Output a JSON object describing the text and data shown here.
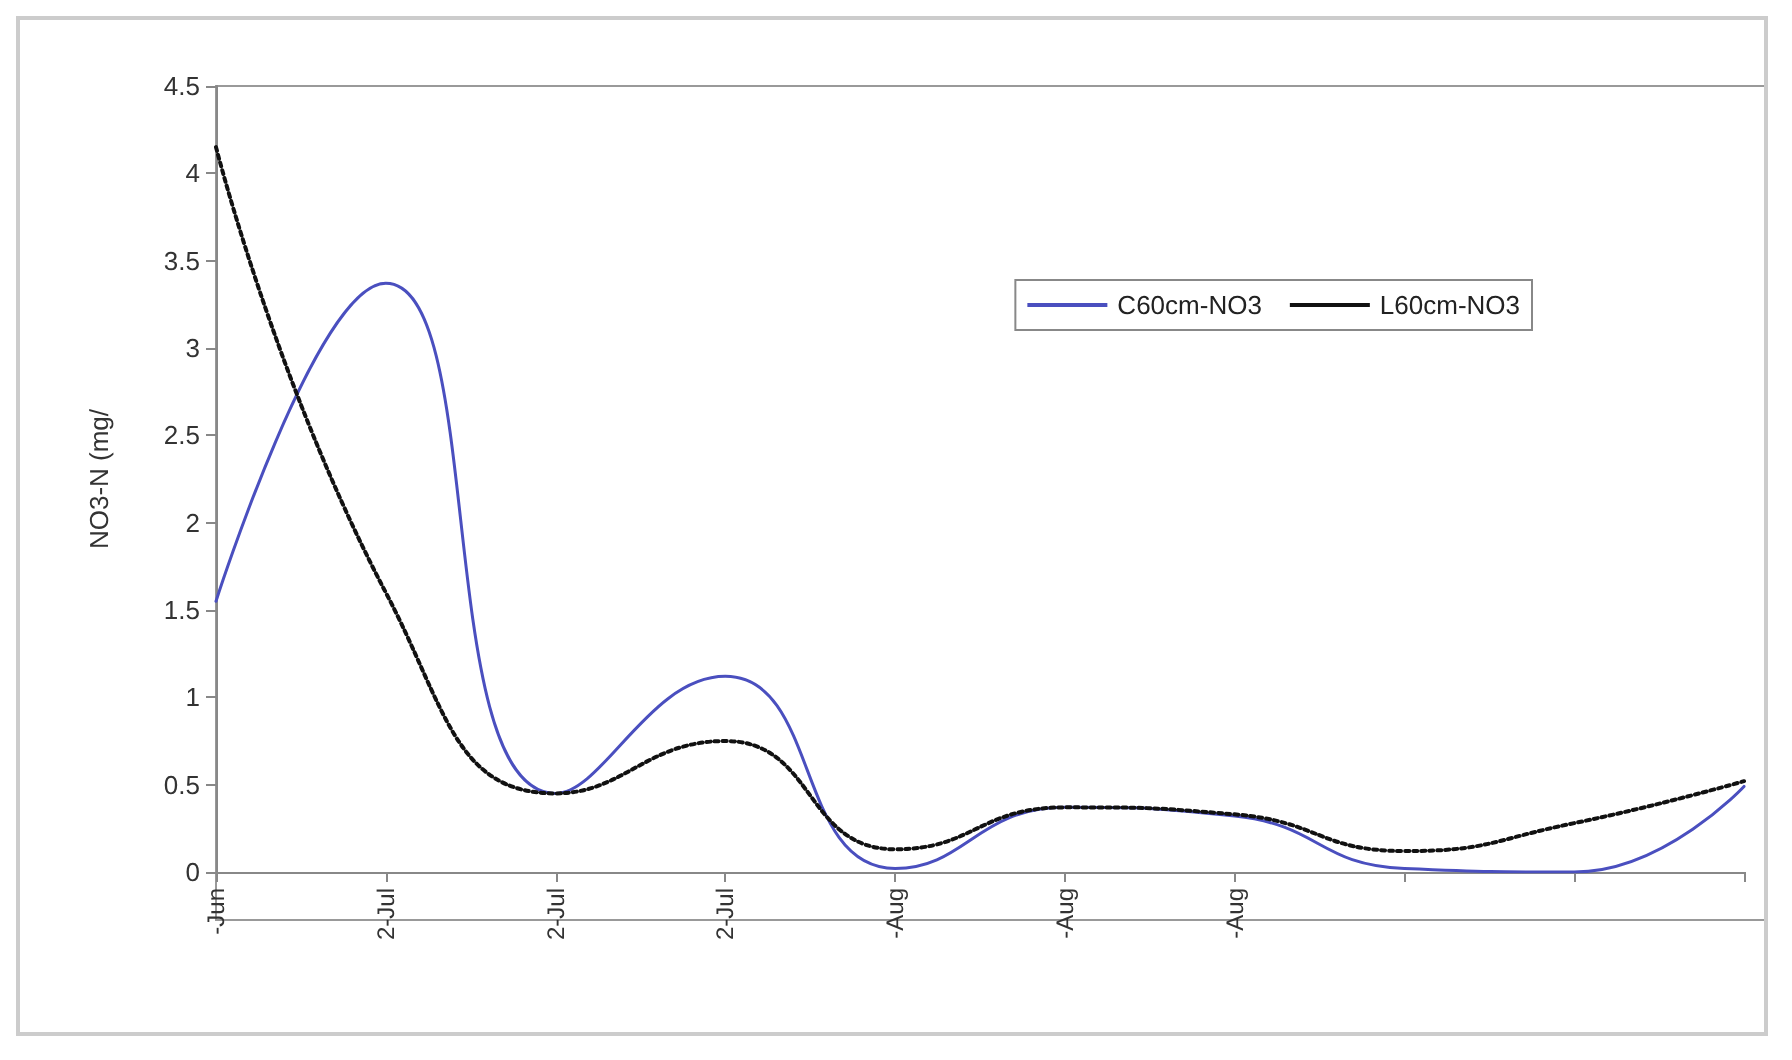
{
  "chart_data": {
    "type": "line",
    "ylabel": "NO3-N (mg/",
    "categories": [
      "-Jun",
      "2-Jul",
      "2-Jul",
      "2-Jul",
      "-Aug",
      "-Aug",
      "-Aug",
      null,
      null,
      null
    ],
    "series": [
      {
        "name": "C60cm-NO3",
        "color": "#4a4fbf",
        "line_style": "solid",
        "values": [
          1.55,
          3.37,
          0.45,
          1.12,
          0.02,
          0.37,
          0.32,
          0.02,
          0.0,
          0.49
        ]
      },
      {
        "name": "L60cm-NO3",
        "color": "#111111",
        "line_style": "dotted",
        "values": [
          4.15,
          1.6,
          0.45,
          0.75,
          0.13,
          0.37,
          0.33,
          0.12,
          0.28,
          0.52
        ]
      }
    ],
    "ylim": [
      0,
      4.5
    ],
    "yticks": [
      0,
      0.5,
      1,
      1.5,
      2,
      2.5,
      3,
      3.5,
      4,
      4.5
    ],
    "grid": false,
    "legend": "top right",
    "marker": "none"
  }
}
